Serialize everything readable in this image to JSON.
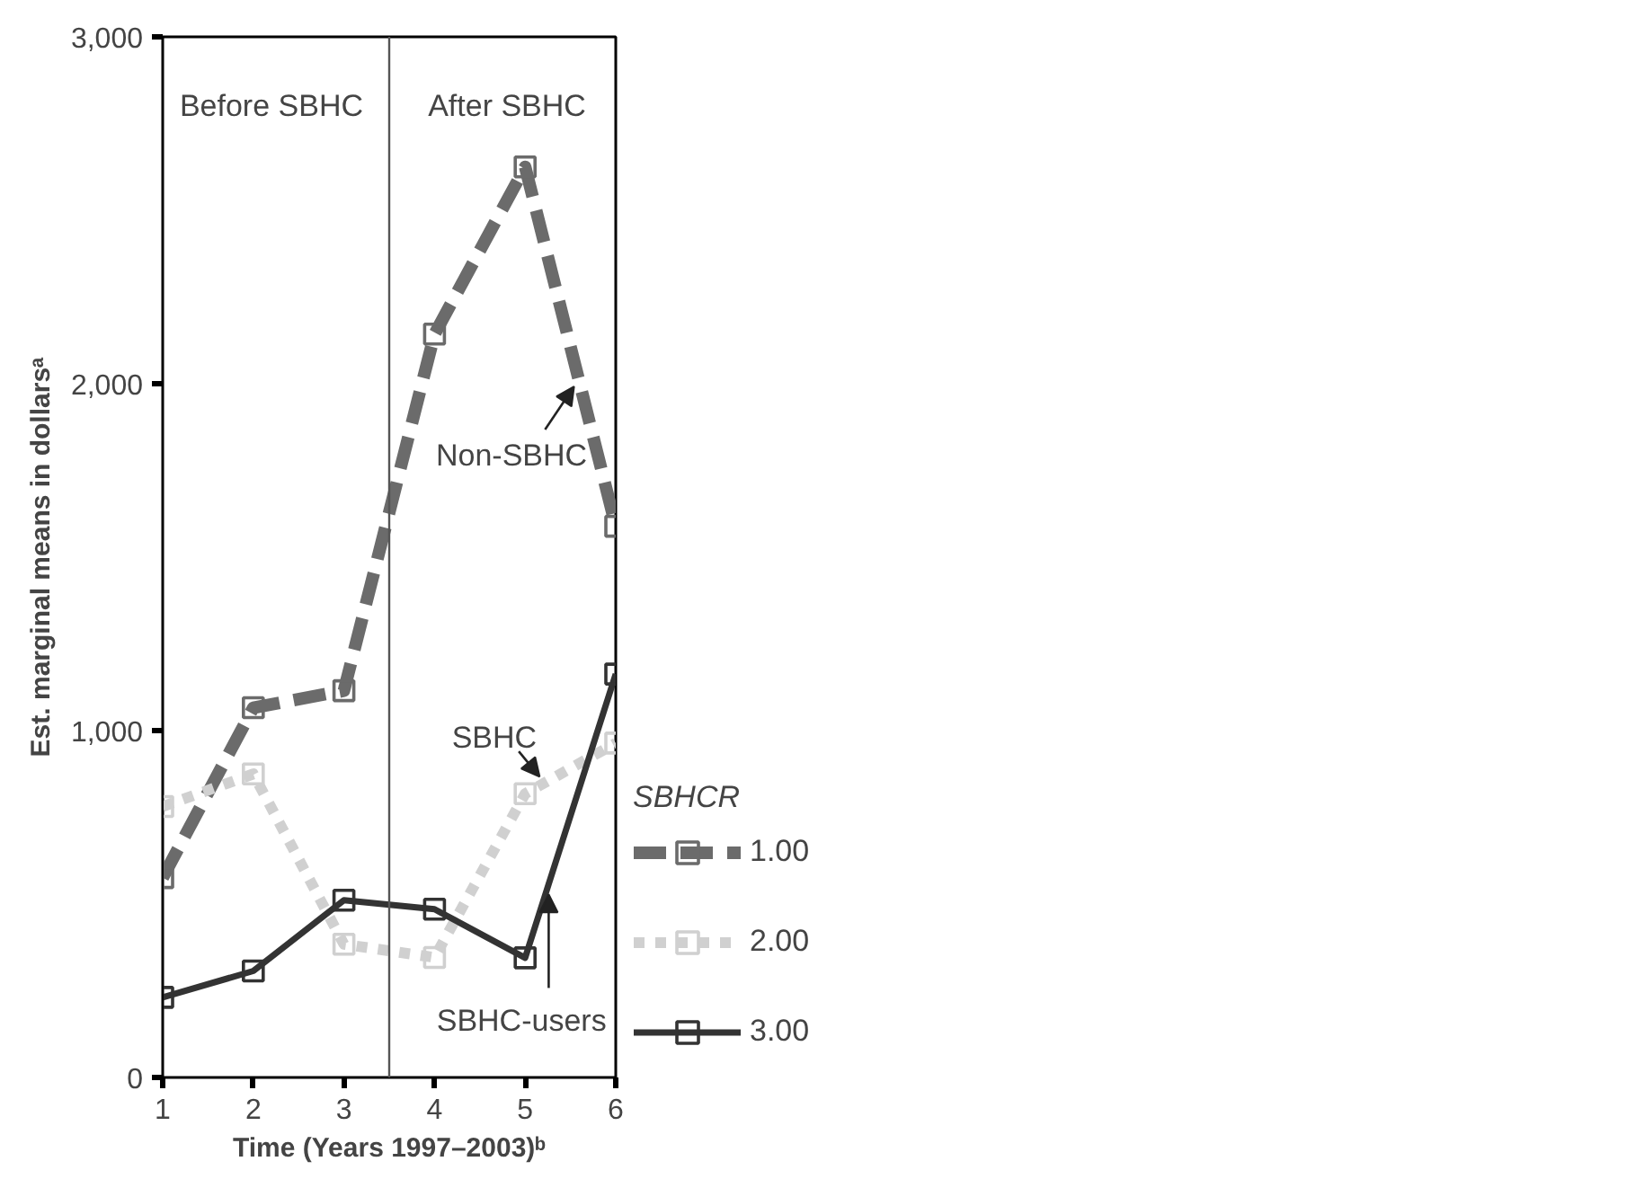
{
  "chart_data": {
    "type": "line",
    "xlabel": "Time (Years 1997–2003)ᵇ",
    "ylabel": "Est. marginal means in dollarsᵃ",
    "legend_title": "SBHCR",
    "x": [
      1,
      2,
      3,
      4,
      5,
      6
    ],
    "series": [
      {
        "name": "1.00",
        "color": "#6b6b6b",
        "line_style": "dashed",
        "values": [
          576,
          1066,
          1115,
          2143,
          2625,
          1589
        ]
      },
      {
        "name": "2.00",
        "color": "#d0d0d0",
        "line_style": "dotted",
        "values": [
          781,
          875,
          384,
          346,
          818,
          964
        ]
      },
      {
        "name": "3.00",
        "color": "#333333",
        "line_style": "solid",
        "values": [
          231,
          307,
          511,
          485,
          345,
          1163
        ]
      }
    ],
    "xlim": [
      1,
      6
    ],
    "ylim": [
      0,
      3000
    ],
    "xticks": [
      1,
      2,
      3,
      4,
      5,
      6
    ],
    "yticks": [
      0,
      {
        "value": 1000,
        "label": "1,000"
      },
      {
        "value": 2000,
        "label": "2,000"
      },
      {
        "value": 3000,
        "label": "3,000"
      }
    ],
    "ref_lines": [
      {
        "axis": "x",
        "value": 3.5,
        "label": null,
        "color": "#555555"
      }
    ],
    "annotations": [
      "Before SBHC",
      "After SBHC",
      {
        "text": "Non-SBHC",
        "x": 5.54,
        "y": 1992
      },
      {
        "text": "SBHC",
        "x": 5.16,
        "y": 867
      },
      {
        "text": "SBHC-users",
        "x": 5.26,
        "y": 528
      }
    ],
    "grid": false,
    "legend": "right",
    "marker": "square"
  }
}
